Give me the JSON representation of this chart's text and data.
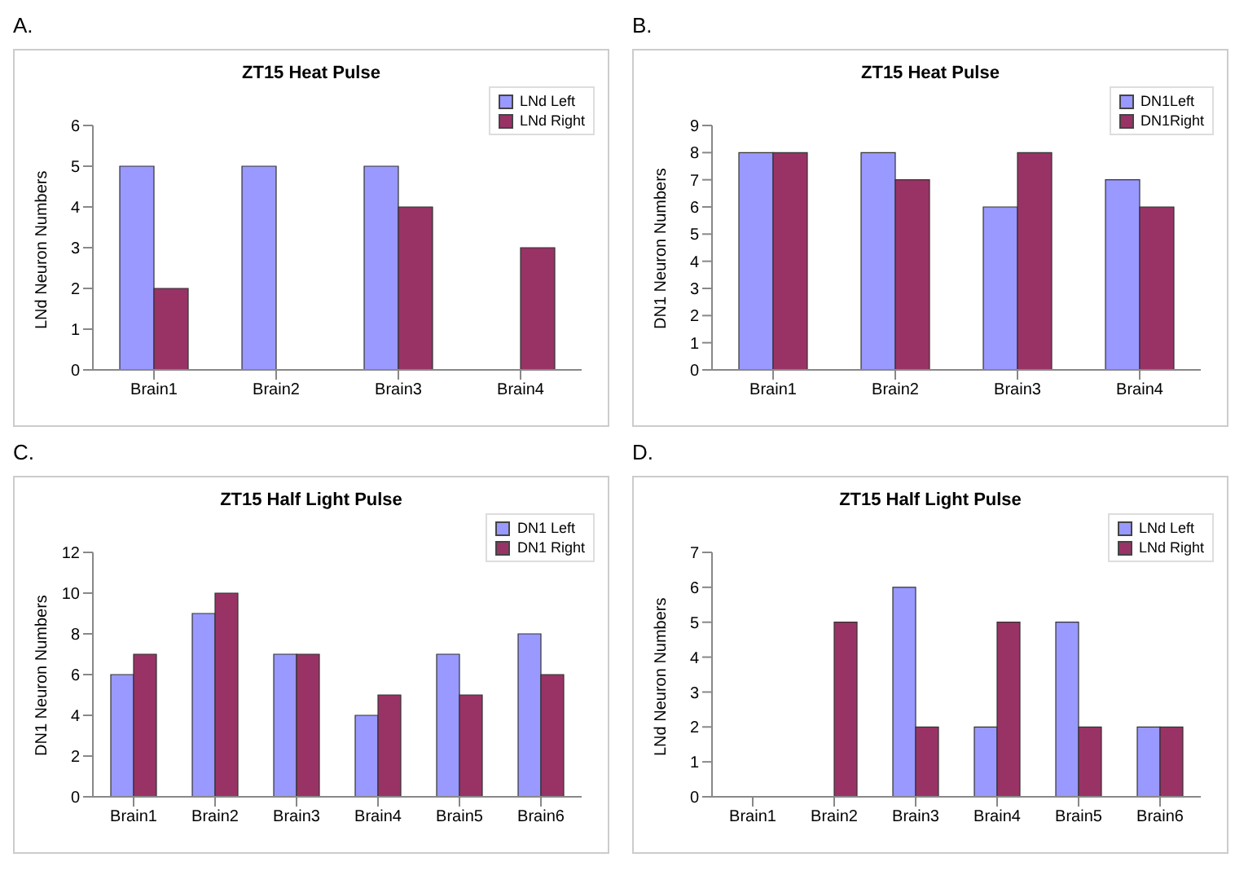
{
  "chart_data": [
    {
      "type": "bar",
      "annotations": [
        "A."
      ],
      "title": "ZT15 Heat Pulse",
      "ylabel": "LNd Neuron Numbers",
      "categories": [
        "Brain1",
        "Brain2",
        "Brain3",
        "Brain4"
      ],
      "series": [
        {
          "name": "LNd Left",
          "color": "#9999ff",
          "values": [
            5,
            5,
            5,
            0
          ]
        },
        {
          "name": "LNd Right",
          "color": "#993366",
          "values": [
            2,
            0,
            4,
            3
          ]
        }
      ],
      "ylim": [
        0,
        6
      ],
      "yticks": [
        0,
        1,
        2,
        3,
        4,
        5,
        6
      ],
      "legend": "top right"
    },
    {
      "type": "bar",
      "annotations": [
        "B."
      ],
      "title": "ZT15 Heat Pulse",
      "ylabel": "DN1 Neuron Numbers",
      "categories": [
        "Brain1",
        "Brain2",
        "Brain3",
        "Brain4"
      ],
      "series": [
        {
          "name": "DN1Left",
          "color": "#9999ff",
          "values": [
            8,
            8,
            6,
            7
          ]
        },
        {
          "name": "DN1Right",
          "color": "#993366",
          "values": [
            8,
            7,
            8,
            6
          ]
        }
      ],
      "ylim": [
        0,
        9
      ],
      "yticks": [
        0,
        1,
        2,
        3,
        4,
        5,
        6,
        7,
        8,
        9
      ],
      "legend": "top right"
    },
    {
      "type": "bar",
      "annotations": [
        "C."
      ],
      "title": "ZT15 Half Light Pulse",
      "ylabel": "DN1 Neuron Numbers",
      "categories": [
        "Brain1",
        "Brain2",
        "Brain3",
        "Brain4",
        "Brain5",
        "Brain6"
      ],
      "series": [
        {
          "name": "DN1 Left",
          "color": "#9999ff",
          "values": [
            6,
            9,
            7,
            4,
            7,
            8
          ]
        },
        {
          "name": "DN1 Right",
          "color": "#993366",
          "values": [
            7,
            10,
            7,
            5,
            5,
            6
          ]
        }
      ],
      "ylim": [
        0,
        12
      ],
      "yticks": [
        0,
        2,
        4,
        6,
        8,
        10,
        12
      ],
      "legend": "top right"
    },
    {
      "type": "bar",
      "annotations": [
        "D."
      ],
      "title": "ZT15 Half Light Pulse",
      "ylabel": "LNd Neuron Numbers",
      "categories": [
        "Brain1",
        "Brain2",
        "Brain3",
        "Brain4",
        "Brain5",
        "Brain6"
      ],
      "series": [
        {
          "name": "LNd Left",
          "color": "#9999ff",
          "values": [
            0,
            0,
            6,
            2,
            5,
            2
          ]
        },
        {
          "name": "LNd Right",
          "color": "#993366",
          "values": [
            0,
            5,
            2,
            5,
            2,
            2
          ]
        }
      ],
      "ylim": [
        0,
        7
      ],
      "yticks": [
        0,
        1,
        2,
        3,
        4,
        5,
        6,
        7
      ],
      "legend": "top right"
    }
  ]
}
